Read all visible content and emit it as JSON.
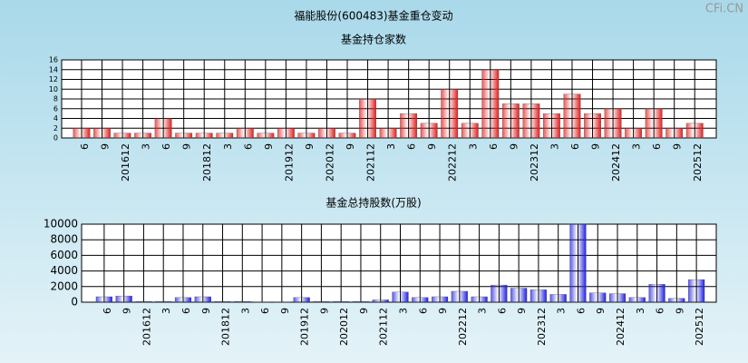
{
  "title": "福能股份(600483)基金重仓变动",
  "watermark": "CFi.CN",
  "chart_data": [
    {
      "type": "bar",
      "title": "基金持仓家数",
      "categories": [
        "6",
        "9",
        "201612",
        "3",
        "6",
        "9",
        "201812",
        "3",
        "6",
        "9",
        "201912",
        "9",
        "202012",
        "9",
        "202112",
        "3",
        "6",
        "9",
        "202212",
        "3",
        "6",
        "9",
        "202312",
        "3",
        "6",
        "9",
        "202412",
        "3",
        "6",
        "9",
        "202512"
      ],
      "values": [
        2,
        2,
        1,
        1,
        4,
        1,
        1,
        1,
        2,
        1,
        2,
        1,
        2,
        1,
        8,
        2,
        5,
        3,
        10,
        3,
        14,
        7,
        7,
        5,
        9,
        5,
        6,
        2,
        6,
        2,
        3
      ],
      "color": "#e02020",
      "ylim": [
        0,
        16
      ],
      "yticks": [
        0,
        2,
        4,
        6,
        8,
        10,
        12,
        14,
        16
      ],
      "grid": true
    },
    {
      "type": "bar",
      "title": "基金总持股数(万股)",
      "categories": [
        "6",
        "9",
        "201612",
        "3",
        "6",
        "9",
        "201812",
        "3",
        "6",
        "9",
        "201912",
        "9",
        "202012",
        "9",
        "202112",
        "3",
        "6",
        "9",
        "202212",
        "3",
        "6",
        "9",
        "202312",
        "3",
        "6",
        "9",
        "202412",
        "3",
        "6",
        "9",
        "202512"
      ],
      "values": [
        700,
        800,
        100,
        100,
        600,
        700,
        100,
        100,
        50,
        50,
        600,
        100,
        100,
        100,
        300,
        1300,
        600,
        700,
        1400,
        700,
        2200,
        1800,
        1600,
        1000,
        10000,
        1200,
        1100,
        600,
        2300,
        500,
        2900
      ],
      "color": "#2020e0",
      "ylim": [
        0,
        10000
      ],
      "yticks": [
        0,
        2000,
        4000,
        6000,
        8000,
        10000
      ],
      "grid": true
    }
  ]
}
